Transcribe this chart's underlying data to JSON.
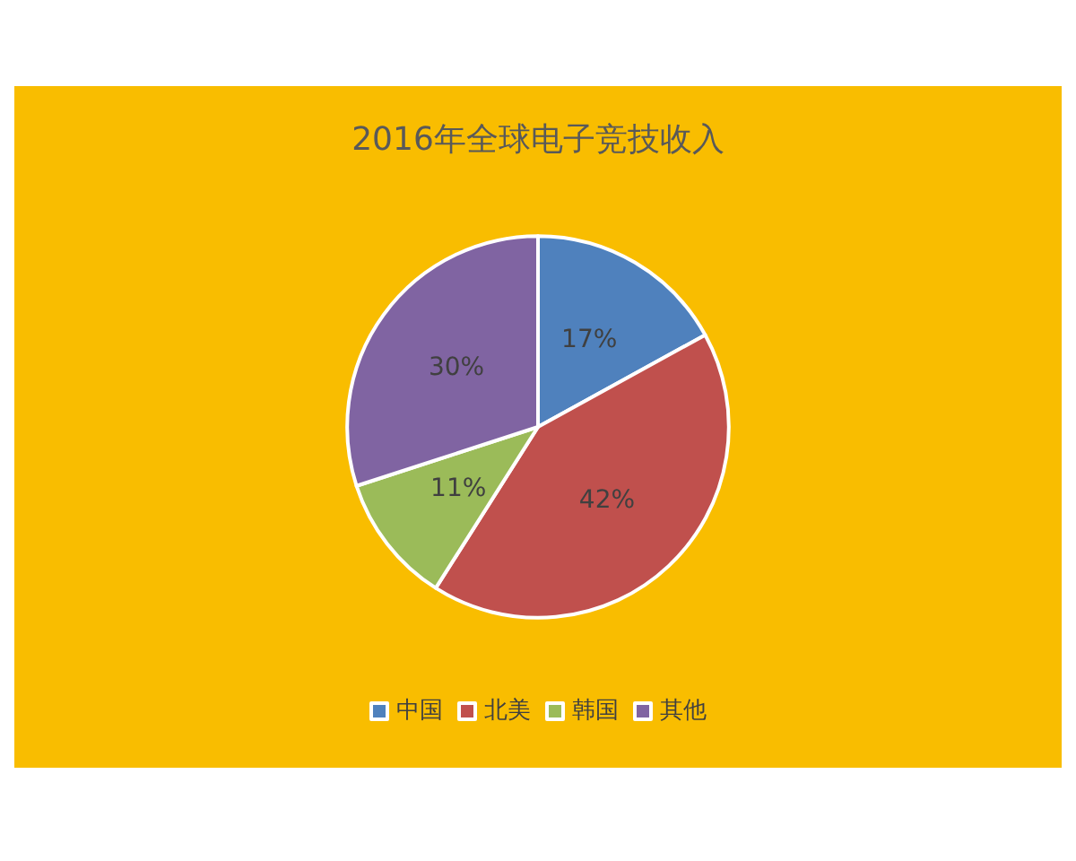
{
  "chart_data": {
    "type": "pie",
    "title": "2016年全球电子竞技收入",
    "categories": [
      "中国",
      "北美",
      "韩国",
      "其他"
    ],
    "values": [
      17,
      42,
      11,
      30
    ],
    "value_labels": [
      "17%",
      "42%",
      "11%",
      "30%"
    ],
    "colors": [
      "#4f81bd",
      "#c0504d",
      "#9bbb59",
      "#8064a2"
    ],
    "legend": "bottom"
  }
}
